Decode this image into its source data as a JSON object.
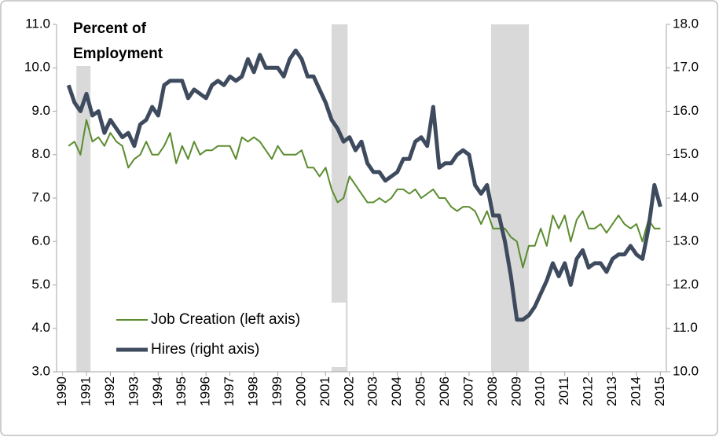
{
  "chart_data": {
    "type": "line",
    "ylabel": [
      "Percent of",
      "Employment"
    ],
    "x": [
      1990.25,
      1990.5,
      1990.75,
      1991.0,
      1991.25,
      1991.5,
      1991.75,
      1992.0,
      1992.25,
      1992.5,
      1992.75,
      1993.0,
      1993.25,
      1993.5,
      1993.75,
      1994.0,
      1994.25,
      1994.5,
      1994.75,
      1995.0,
      1995.25,
      1995.5,
      1995.75,
      1996.0,
      1996.25,
      1996.5,
      1996.75,
      1997.0,
      1997.25,
      1997.5,
      1997.75,
      1998.0,
      1998.25,
      1998.5,
      1998.75,
      1999.0,
      1999.25,
      1999.5,
      1999.75,
      2000.0,
      2000.25,
      2000.5,
      2000.75,
      2001.0,
      2001.25,
      2001.5,
      2001.75,
      2002.0,
      2002.25,
      2002.5,
      2002.75,
      2003.0,
      2003.25,
      2003.5,
      2003.75,
      2004.0,
      2004.25,
      2004.5,
      2004.75,
      2005.0,
      2005.25,
      2005.5,
      2005.75,
      2006.0,
      2006.25,
      2006.5,
      2006.75,
      2007.0,
      2007.25,
      2007.5,
      2007.75,
      2008.0,
      2008.25,
      2008.5,
      2008.75,
      2009.0,
      2009.25,
      2009.5,
      2009.75,
      2010.0,
      2010.25,
      2010.5,
      2010.75,
      2011.0,
      2011.25,
      2011.5,
      2011.75,
      2012.0,
      2012.25,
      2012.5,
      2012.75,
      2013.0,
      2013.25,
      2013.5,
      2013.75,
      2014.0,
      2014.25,
      2014.5,
      2014.75,
      2015.0
    ],
    "series": [
      {
        "name": "Job Creation (left axis)",
        "color": "#5b8c2f",
        "axis": "y",
        "values": [
          8.2,
          8.3,
          8.0,
          8.8,
          8.3,
          8.4,
          8.2,
          8.5,
          8.3,
          8.2,
          7.7,
          7.9,
          8.0,
          8.3,
          8.0,
          8.0,
          8.2,
          8.5,
          7.8,
          8.2,
          7.9,
          8.3,
          8.0,
          8.1,
          8.1,
          8.2,
          8.2,
          8.2,
          7.9,
          8.4,
          8.3,
          8.4,
          8.3,
          8.1,
          7.9,
          8.2,
          8.0,
          8.0,
          8.0,
          8.1,
          7.7,
          7.7,
          7.5,
          7.7,
          7.2,
          6.9,
          7.0,
          7.5,
          7.3,
          7.1,
          6.9,
          6.9,
          7.0,
          6.9,
          7.0,
          7.2,
          7.2,
          7.1,
          7.2,
          7.0,
          7.1,
          7.2,
          7.0,
          7.0,
          6.8,
          6.7,
          6.8,
          6.8,
          6.7,
          6.4,
          6.7,
          6.3,
          6.3,
          6.3,
          6.1,
          6.0,
          5.4,
          5.9,
          5.9,
          6.3,
          5.9,
          6.6,
          6.3,
          6.6,
          6.0,
          6.5,
          6.7,
          6.3,
          6.3,
          6.4,
          6.2,
          6.4,
          6.6,
          6.4,
          6.3,
          6.4,
          6.0,
          6.5,
          6.3,
          6.3
        ]
      },
      {
        "name": "Hires (right axis)",
        "color": "#3e4b5e",
        "axis": "y2",
        "values": [
          16.6,
          16.2,
          16.0,
          16.4,
          15.9,
          16.0,
          15.5,
          15.8,
          15.6,
          15.4,
          15.5,
          15.2,
          15.7,
          15.8,
          16.1,
          15.9,
          16.6,
          16.7,
          16.7,
          16.7,
          16.3,
          16.5,
          16.4,
          16.3,
          16.6,
          16.7,
          16.6,
          16.8,
          16.7,
          16.8,
          17.2,
          16.9,
          17.3,
          17.0,
          17.0,
          17.0,
          16.8,
          17.2,
          17.4,
          17.2,
          16.8,
          16.8,
          16.5,
          16.2,
          15.8,
          15.6,
          15.3,
          15.4,
          15.1,
          15.3,
          14.8,
          14.6,
          14.6,
          14.4,
          14.5,
          14.6,
          14.9,
          14.9,
          15.3,
          15.4,
          15.2,
          16.1,
          14.7,
          14.8,
          14.8,
          15.0,
          15.1,
          15.0,
          14.3,
          14.1,
          14.3,
          13.6,
          13.6,
          13.0,
          12.2,
          11.2,
          11.2,
          11.3,
          11.5,
          11.8,
          12.1,
          12.5,
          12.2,
          12.5,
          12.0,
          12.6,
          12.8,
          12.4,
          12.5,
          12.5,
          12.3,
          12.6,
          12.7,
          12.7,
          12.9,
          12.7,
          12.6,
          13.3,
          14.3,
          13.8
        ]
      }
    ],
    "recessions": [
      [
        1990.58,
        1991.17
      ],
      [
        2001.25,
        2001.92
      ],
      [
        2007.92,
        2009.5
      ]
    ],
    "recession_color": "#d9d9d9",
    "xlim": [
      1989.75,
      2015.25
    ],
    "xticks": [
      1990,
      1991,
      1992,
      1993,
      1994,
      1995,
      1996,
      1997,
      1998,
      1999,
      2000,
      2001,
      2002,
      2003,
      2004,
      2005,
      2006,
      2007,
      2008,
      2009,
      2010,
      2011,
      2012,
      2013,
      2014,
      2015
    ],
    "ylim": [
      3,
      11
    ],
    "yticks": [
      {
        "value": 3,
        "label": "3.0"
      },
      {
        "value": 4,
        "label": "4.0"
      },
      {
        "value": 5,
        "label": "5.0"
      },
      {
        "value": 6,
        "label": "6.0"
      },
      {
        "value": 7,
        "label": "7.0"
      },
      {
        "value": 8,
        "label": "8.0"
      },
      {
        "value": 9,
        "label": "9.0"
      },
      {
        "value": 10,
        "label": "10.0"
      },
      {
        "value": 11,
        "label": "11.0"
      }
    ],
    "y2lim": [
      10,
      18
    ],
    "y2ticks": [
      {
        "value": 10,
        "label": "10.0"
      },
      {
        "value": 11,
        "label": "11.0"
      },
      {
        "value": 12,
        "label": "12.0"
      },
      {
        "value": 13,
        "label": "13.0"
      },
      {
        "value": 14,
        "label": "14.0"
      },
      {
        "value": 15,
        "label": "15.0"
      },
      {
        "value": 16,
        "label": "16.0"
      },
      {
        "value": 17,
        "label": "17.0"
      },
      {
        "value": 18,
        "label": "18.0"
      }
    ],
    "grid": false,
    "legend": "lower left"
  }
}
